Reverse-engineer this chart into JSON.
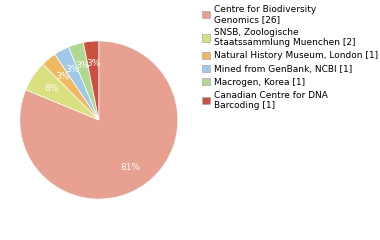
{
  "labels": [
    "Centre for Biodiversity\nGenomics [26]",
    "SNSB, Zoologische\nStaatssammlung Muenchen [2]",
    "Natural History Museum, London [1]",
    "Mined from GenBank, NCBI [1]",
    "Macrogen, Korea [1]",
    "Canadian Centre for DNA\nBarcoding [1]"
  ],
  "values": [
    26,
    2,
    1,
    1,
    1,
    1
  ],
  "colors": [
    "#e8a090",
    "#d8e080",
    "#f0b860",
    "#a0c8e8",
    "#b0d890",
    "#cc5040"
  ],
  "background_color": "#ffffff",
  "legend_fontsize": 6.5,
  "autopct_fontsize": 6.5
}
